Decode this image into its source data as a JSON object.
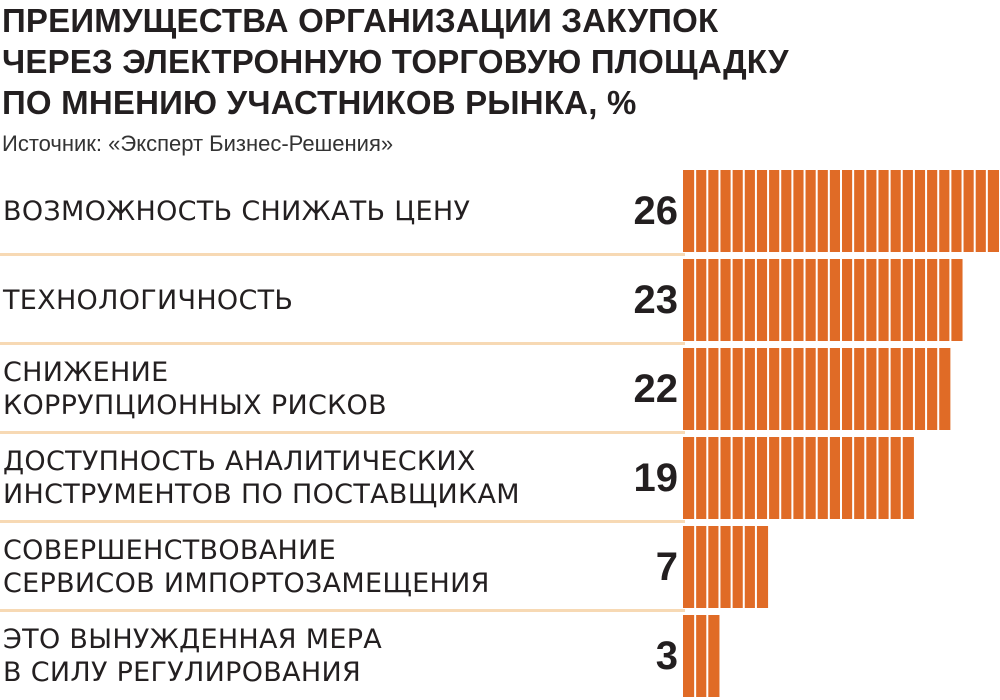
{
  "title_lines": [
    "ПРЕИМУЩЕСТВА ОРГАНИЗАЦИИ ЗАКУПОК",
    "ЧЕРЕЗ ЭЛЕКТРОННУЮ ТОРГОВУЮ ПЛОЩАДКУ",
    "ПО МНЕНИЮ УЧАСТНИКОВ РЫНКА, %"
  ],
  "source": "Источник: «Эксперт Бизнес-Решения»",
  "colors": {
    "bar": "#e06b26",
    "tick": "#ffffff",
    "separator": "#f7d9b4",
    "text": "#231f20"
  },
  "chart_data": {
    "type": "bar",
    "orientation": "horizontal",
    "title": "ПРЕИМУЩЕСТВА ОРГАНИЗАЦИИ ЗАКУПОК ЧЕРЕЗ ЭЛЕКТРОННУЮ ТОРГОВУЮ ПЛОЩАДКУ ПО МНЕНИЮ УЧАСТНИКОВ РЫНКА, %",
    "categories": [
      [
        "ВОЗМОЖНОСТЬ СНИЖАТЬ ЦЕНУ"
      ],
      [
        "ТЕХНОЛОГИЧНОСТЬ"
      ],
      [
        "СНИЖЕНИЕ",
        "КОРРУПЦИОННЫХ РИСКОВ"
      ],
      [
        "ДОСТУПНОСТЬ АНАЛИТИЧЕСКИХ",
        "ИНСТРУМЕНТОВ ПО ПОСТАВЩИКАМ"
      ],
      [
        "СОВЕРШЕНСТВОВАНИЕ",
        "СЕРВИСОВ ИМПОРТОЗАМЕЩЕНИЯ"
      ],
      [
        "ЭТО ВЫНУЖДЕННАЯ МЕРА",
        "В СИЛУ РЕГУЛИРОВАНИЯ"
      ]
    ],
    "values": [
      26,
      23,
      22,
      19,
      7,
      3
    ],
    "labels": [
      "26",
      "23",
      "22",
      "19",
      "7",
      "3"
    ],
    "xlim": [
      0,
      26
    ],
    "grid": false,
    "legend": "none"
  }
}
